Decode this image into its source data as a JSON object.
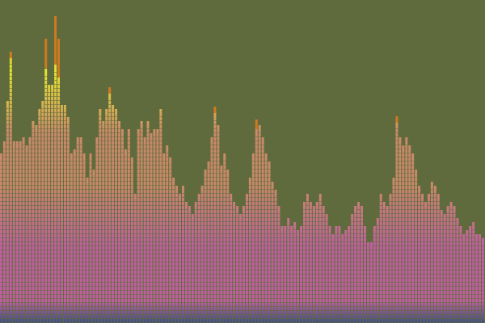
{
  "visualizer": {
    "type": "spectrum-bars",
    "colors": {
      "background": "#606b3d",
      "segment_gap": "#606b3d",
      "top_yellow": "#e4e62f",
      "peak_orange": "#d07a20",
      "mid_tan": "#c98a6a",
      "low_pink": "#c060a0",
      "base_blue": "#3a4e86"
    },
    "bars": [
      0.53,
      0.56,
      0.69,
      0.82,
      0.56,
      0.56,
      0.56,
      0.58,
      0.55,
      0.57,
      0.62,
      0.61,
      0.66,
      0.69,
      0.79,
      0.74,
      0.74,
      0.8,
      0.76,
      0.68,
      0.67,
      0.64,
      0.53,
      0.54,
      0.58,
      0.57,
      0.53,
      0.45,
      0.52,
      0.48,
      0.58,
      0.66,
      0.63,
      0.66,
      0.71,
      0.67,
      0.66,
      0.63,
      0.6,
      0.54,
      0.6,
      0.51,
      0.4,
      0.6,
      0.63,
      0.58,
      0.62,
      0.59,
      0.6,
      0.6,
      0.66,
      0.53,
      0.55,
      0.51,
      0.45,
      0.43,
      0.4,
      0.42,
      0.37,
      0.36,
      0.34,
      0.38,
      0.4,
      0.42,
      0.48,
      0.5,
      0.58,
      0.65,
      0.61,
      0.49,
      0.52,
      0.48,
      0.4,
      0.38,
      0.36,
      0.34,
      0.36,
      0.4,
      0.45,
      0.53,
      0.6,
      0.61,
      0.58,
      0.53,
      0.5,
      0.44,
      0.41,
      0.36,
      0.3,
      0.3,
      0.33,
      0.3,
      0.31,
      0.29,
      0.3,
      0.37,
      0.4,
      0.38,
      0.36,
      0.38,
      0.4,
      0.36,
      0.34,
      0.3,
      0.28,
      0.3,
      0.3,
      0.28,
      0.29,
      0.3,
      0.34,
      0.36,
      0.38,
      0.36,
      0.3,
      0.25,
      0.25,
      0.3,
      0.33,
      0.4,
      0.38,
      0.36,
      0.4,
      0.45,
      0.62,
      0.58,
      0.55,
      0.58,
      0.55,
      0.53,
      0.48,
      0.42,
      0.4,
      0.38,
      0.4,
      0.44,
      0.42,
      0.4,
      0.35,
      0.34,
      0.36,
      0.38,
      0.36,
      0.32,
      0.3,
      0.28,
      0.29,
      0.3,
      0.31,
      0.28,
      0.27,
      0.26
    ],
    "peaks": [
      {
        "bar": 3,
        "level": 0.84
      },
      {
        "bar": 14,
        "level": 0.88
      },
      {
        "bar": 17,
        "level": 0.95
      },
      {
        "bar": 18,
        "level": 0.88
      },
      {
        "bar": 34,
        "level": 0.73
      },
      {
        "bar": 67,
        "level": 0.67
      },
      {
        "bar": 80,
        "level": 0.63
      },
      {
        "bar": 124,
        "level": 0.64
      }
    ]
  }
}
